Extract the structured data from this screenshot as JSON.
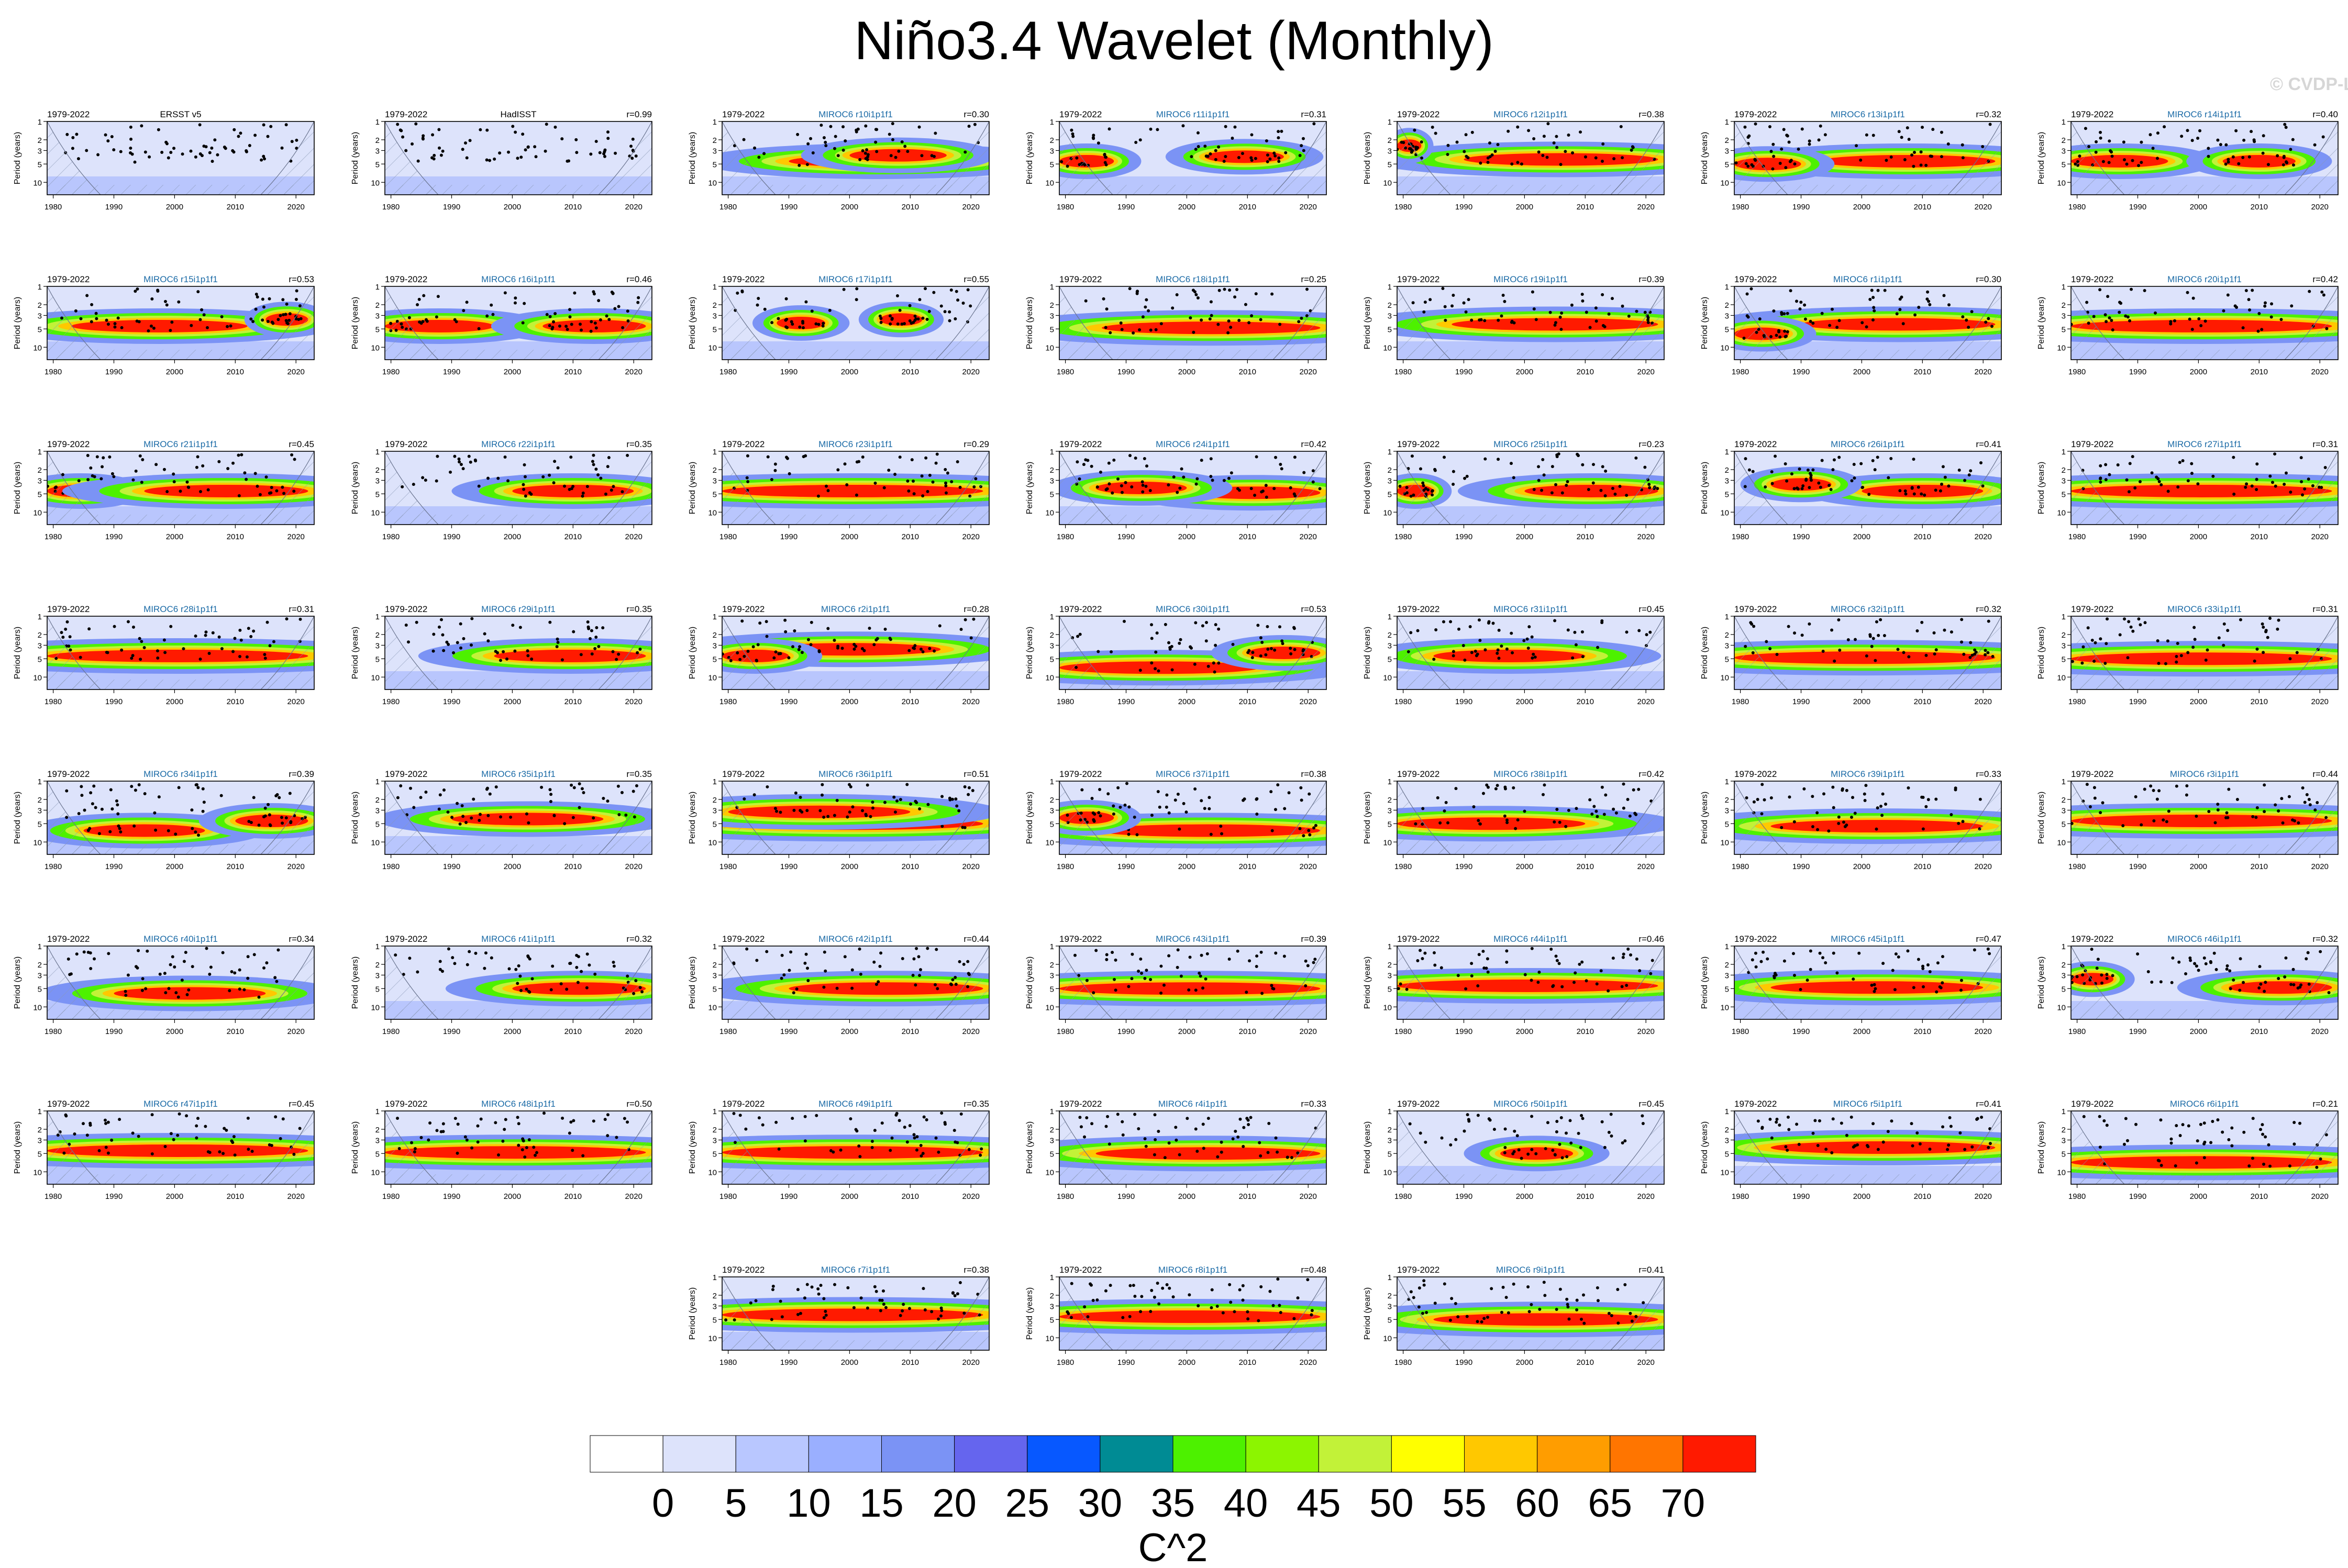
{
  "title": "Niño3.4 Wavelet (Monthly)",
  "watermark": "© CVDP-LE",
  "colors": {
    "levels": [
      "#ffffff",
      "#dde3fb",
      "#b9c7ff",
      "#9aafff",
      "#7b93f5",
      "#6565ee",
      "#0758ff",
      "#008b94",
      "#4df100",
      "#8cf500",
      "#c2f238",
      "#ffff00",
      "#ffc800",
      "#ff9d00",
      "#ff7500",
      "#ff1a00"
    ],
    "dots": "#000000",
    "hatch": "#8a97b4",
    "title_obs": "#000000",
    "title_model": "#1a6aa6"
  },
  "chart_data": {
    "type": "heatmap",
    "title": "Niño3.4 Wavelet (Monthly)",
    "colorbar": {
      "ticks": [
        "0",
        "5",
        "10",
        "15",
        "20",
        "25",
        "30",
        "35",
        "40",
        "45",
        "50",
        "55",
        "60",
        "65",
        "70"
      ],
      "label": "C^2"
    },
    "panel_common": {
      "period_label": "1979-2022",
      "ylabel": "Period (years)",
      "yticks": [
        "1",
        "2",
        "3",
        "5",
        "10"
      ],
      "xticks": [
        "1980",
        "1990",
        "2000",
        "2010",
        "2020"
      ],
      "xlim": [
        1979,
        2023
      ],
      "ylim": [
        1,
        16
      ]
    },
    "panels": [
      {
        "name": "ERSST v5",
        "r": "",
        "obs": true,
        "bands": []
      },
      {
        "name": "HadISST",
        "r": "r=0.99",
        "obs": true,
        "bands": []
      },
      {
        "name": "MIROC6 r10i1p1f1",
        "r": "r=0.30",
        "bands": [
          [
            1990,
            2020,
            4.5
          ],
          [
            2000,
            2016,
            3.6
          ]
        ]
      },
      {
        "name": "MIROC6 r11i1p1f1",
        "r": "r=0.31",
        "bands": [
          [
            2003,
            2016,
            3.8
          ],
          [
            1979,
            1988,
            4.5
          ]
        ]
      },
      {
        "name": "MIROC6 r12i1p1f1",
        "r": "r=0.38",
        "bands": [
          [
            1990,
            2022,
            4.2
          ],
          [
            1979,
            1983,
            2.5
          ]
        ]
      },
      {
        "name": "MIROC6 r13i1p1f1",
        "r": "r=0.32",
        "bands": [
          [
            1993,
            2022,
            4.5
          ],
          [
            1979,
            1990,
            5
          ]
        ]
      },
      {
        "name": "MIROC6 r14i1p1f1",
        "r": "r=0.40",
        "bands": [
          [
            1979,
            1995,
            4.5
          ],
          [
            2004,
            2016,
            4.5
          ]
        ]
      },
      {
        "name": "MIROC6 r15i1p1f1",
        "r": "r=0.53",
        "bands": [
          [
            1983,
            2012,
            4.5
          ],
          [
            2015,
            2022,
            3.5
          ]
        ]
      },
      {
        "name": "MIROC6 r16i1p1f1",
        "r": "r=0.46",
        "bands": [
          [
            1979,
            1997,
            4.5
          ],
          [
            2005,
            2022,
            4.5
          ]
        ]
      },
      {
        "name": "MIROC6 r17i1p1f1",
        "r": "r=0.55",
        "bands": [
          [
            1988,
            1996,
            4
          ],
          [
            2005,
            2012,
            3.5
          ]
        ]
      },
      {
        "name": "MIROC6 r18i1p1f1",
        "r": "r=0.25",
        "bands": [
          [
            1986,
            2022,
            4.8
          ]
        ]
      },
      {
        "name": "MIROC6 r19i1p1f1",
        "r": "r=0.39",
        "bands": [
          [
            1988,
            2022,
            4.2
          ]
        ]
      },
      {
        "name": "MIROC6 r1i1p1f1",
        "r": "r=0.30",
        "bands": [
          [
            1990,
            2022,
            4.2
          ],
          [
            1979,
            1988,
            6
          ]
        ]
      },
      {
        "name": "MIROC6 r20i1p1f1",
        "r": "r=0.42",
        "bands": [
          [
            1979,
            2022,
            4.5
          ]
        ]
      },
      {
        "name": "MIROC6 r21i1p1f1",
        "r": "r=0.45",
        "bands": [
          [
            1979,
            1990,
            4.5
          ],
          [
            1995,
            2022,
            4.5
          ]
        ]
      },
      {
        "name": "MIROC6 r22i1p1f1",
        "r": "r=0.35",
        "bands": [
          [
            2000,
            2020,
            4.5
          ]
        ]
      },
      {
        "name": "MIROC6 r23i1p1f1",
        "r": "r=0.29",
        "bands": [
          [
            1979,
            2022,
            4.5
          ]
        ]
      },
      {
        "name": "MIROC6 r24i1p1f1",
        "r": "r=0.42",
        "bands": [
          [
            2000,
            2022,
            4.8
          ],
          [
            1985,
            2000,
            4
          ]
        ]
      },
      {
        "name": "MIROC6 r25i1p1f1",
        "r": "r=0.23",
        "bands": [
          [
            2000,
            2022,
            4.5
          ],
          [
            1979,
            1985,
            4.5
          ]
        ]
      },
      {
        "name": "MIROC6 r26i1p1f1",
        "r": "r=0.41",
        "bands": [
          [
            2000,
            2020,
            4.5
          ],
          [
            1985,
            1995,
            3.5
          ]
        ]
      },
      {
        "name": "MIROC6 r27i1p1f1",
        "r": "r=0.31",
        "bands": [
          [
            1979,
            2022,
            4.5
          ]
        ]
      },
      {
        "name": "MIROC6 r28i1p1f1",
        "r": "r=0.31",
        "bands": [
          [
            1979,
            2022,
            4.5
          ]
        ]
      },
      {
        "name": "MIROC6 r29i1p1f1",
        "r": "r=0.35",
        "bands": [
          [
            1997,
            2022,
            4.5
          ]
        ]
      },
      {
        "name": "MIROC6 r2i1p1f1",
        "r": "r=0.28",
        "bands": [
          [
            1985,
            2015,
            3.5
          ],
          [
            1979,
            1990,
            4.5
          ]
        ]
      },
      {
        "name": "MIROC6 r30i1p1f1",
        "r": "r=0.53",
        "bands": [
          [
            1979,
            2012,
            7
          ],
          [
            2010,
            2022,
            4
          ]
        ]
      },
      {
        "name": "MIROC6 r31i1p1f1",
        "r": "r=0.45",
        "bands": [
          [
            1985,
            2010,
            4.5
          ]
        ]
      },
      {
        "name": "MIROC6 r32i1p1f1",
        "r": "r=0.32",
        "bands": [
          [
            1979,
            2022,
            4.8
          ]
        ]
      },
      {
        "name": "MIROC6 r33i1p1f1",
        "r": "r=0.31",
        "bands": [
          [
            1979,
            2022,
            5
          ]
        ]
      },
      {
        "name": "MIROC6 r34i1p1f1",
        "r": "r=0.39",
        "bands": [
          [
            1985,
            2005,
            6.5
          ],
          [
            2010,
            2022,
            4.5
          ]
        ]
      },
      {
        "name": "MIROC6 r35i1p1f1",
        "r": "r=0.35",
        "bands": [
          [
            1990,
            2015,
            4.2
          ]
        ]
      },
      {
        "name": "MIROC6 r36i1p1f1",
        "r": "r=0.51",
        "bands": [
          [
            1979,
            2022,
            5
          ],
          [
            1980,
            2010,
            3.2
          ]
        ]
      },
      {
        "name": "MIROC6 r37i1p1f1",
        "r": "r=0.38",
        "bands": [
          [
            1985,
            2022,
            6.5
          ],
          [
            1979,
            1988,
            4
          ]
        ]
      },
      {
        "name": "MIROC6 r38i1p1f1",
        "r": "r=0.42",
        "bands": [
          [
            1979,
            2010,
            5
          ]
        ]
      },
      {
        "name": "MIROC6 r39i1p1f1",
        "r": "r=0.33",
        "bands": [
          [
            1985,
            2020,
            5.5
          ]
        ]
      },
      {
        "name": "MIROC6 r3i1p1f1",
        "r": "r=0.44",
        "bands": [
          [
            1979,
            2022,
            4.5
          ]
        ]
      },
      {
        "name": "MIROC6 r40i1p1f1",
        "r": "r=0.34",
        "bands": [
          [
            1990,
            2015,
            6
          ]
        ]
      },
      {
        "name": "MIROC6 r41i1p1f1",
        "r": "r=0.32",
        "bands": [
          [
            2000,
            2022,
            5
          ]
        ]
      },
      {
        "name": "MIROC6 r42i1p1f1",
        "r": "r=0.44",
        "bands": [
          [
            1990,
            2022,
            5
          ]
        ]
      },
      {
        "name": "MIROC6 r43i1p1f1",
        "r": "r=0.39",
        "bands": [
          [
            1979,
            2022,
            5
          ]
        ]
      },
      {
        "name": "MIROC6 r44i1p1f1",
        "r": "r=0.46",
        "bands": [
          [
            1979,
            2022,
            4.5
          ]
        ]
      },
      {
        "name": "MIROC6 r45i1p1f1",
        "r": "r=0.47",
        "bands": [
          [
            1985,
            2020,
            4.8
          ]
        ]
      },
      {
        "name": "MIROC6 r46i1p1f1",
        "r": "r=0.32",
        "bands": [
          [
            2005,
            2022,
            4.8
          ],
          [
            1979,
            1986,
            3.5
          ]
        ]
      },
      {
        "name": "MIROC6 r47i1p1f1",
        "r": "r=0.45",
        "bands": [
          [
            1979,
            2022,
            4.5
          ]
        ]
      },
      {
        "name": "MIROC6 r48i1p1f1",
        "r": "r=0.50",
        "bands": [
          [
            1979,
            2022,
            4.8
          ]
        ]
      },
      {
        "name": "MIROC6 r49i1p1f1",
        "r": "r=0.35",
        "bands": [
          [
            1979,
            2022,
            4.8
          ]
        ]
      },
      {
        "name": "MIROC6 r4i1p1f1",
        "r": "r=0.33",
        "bands": [
          [
            1985,
            2022,
            5
          ]
        ]
      },
      {
        "name": "MIROC6 r50i1p1f1",
        "r": "r=0.45",
        "bands": [
          [
            1996,
            2008,
            5
          ]
        ]
      },
      {
        "name": "MIROC6 r5i1p1f1",
        "r": "r=0.41",
        "bands": [
          [
            1985,
            2022,
            4
          ]
        ]
      },
      {
        "name": "MIROC6 r6i1p1f1",
        "r": "r=0.21",
        "bands": [
          [
            1979,
            2022,
            7
          ]
        ]
      },
      {
        "name": "MIROC6 r7i1p1f1",
        "r": "r=0.38",
        "bands": [
          [
            1979,
            2022,
            4.2
          ]
        ]
      },
      {
        "name": "MIROC6 r8i1p1f1",
        "r": "r=0.48",
        "bands": [
          [
            1979,
            2022,
            4.5
          ]
        ]
      },
      {
        "name": "MIROC6 r9i1p1f1",
        "r": "r=0.41",
        "bands": [
          [
            1985,
            2022,
            5
          ]
        ]
      }
    ]
  }
}
